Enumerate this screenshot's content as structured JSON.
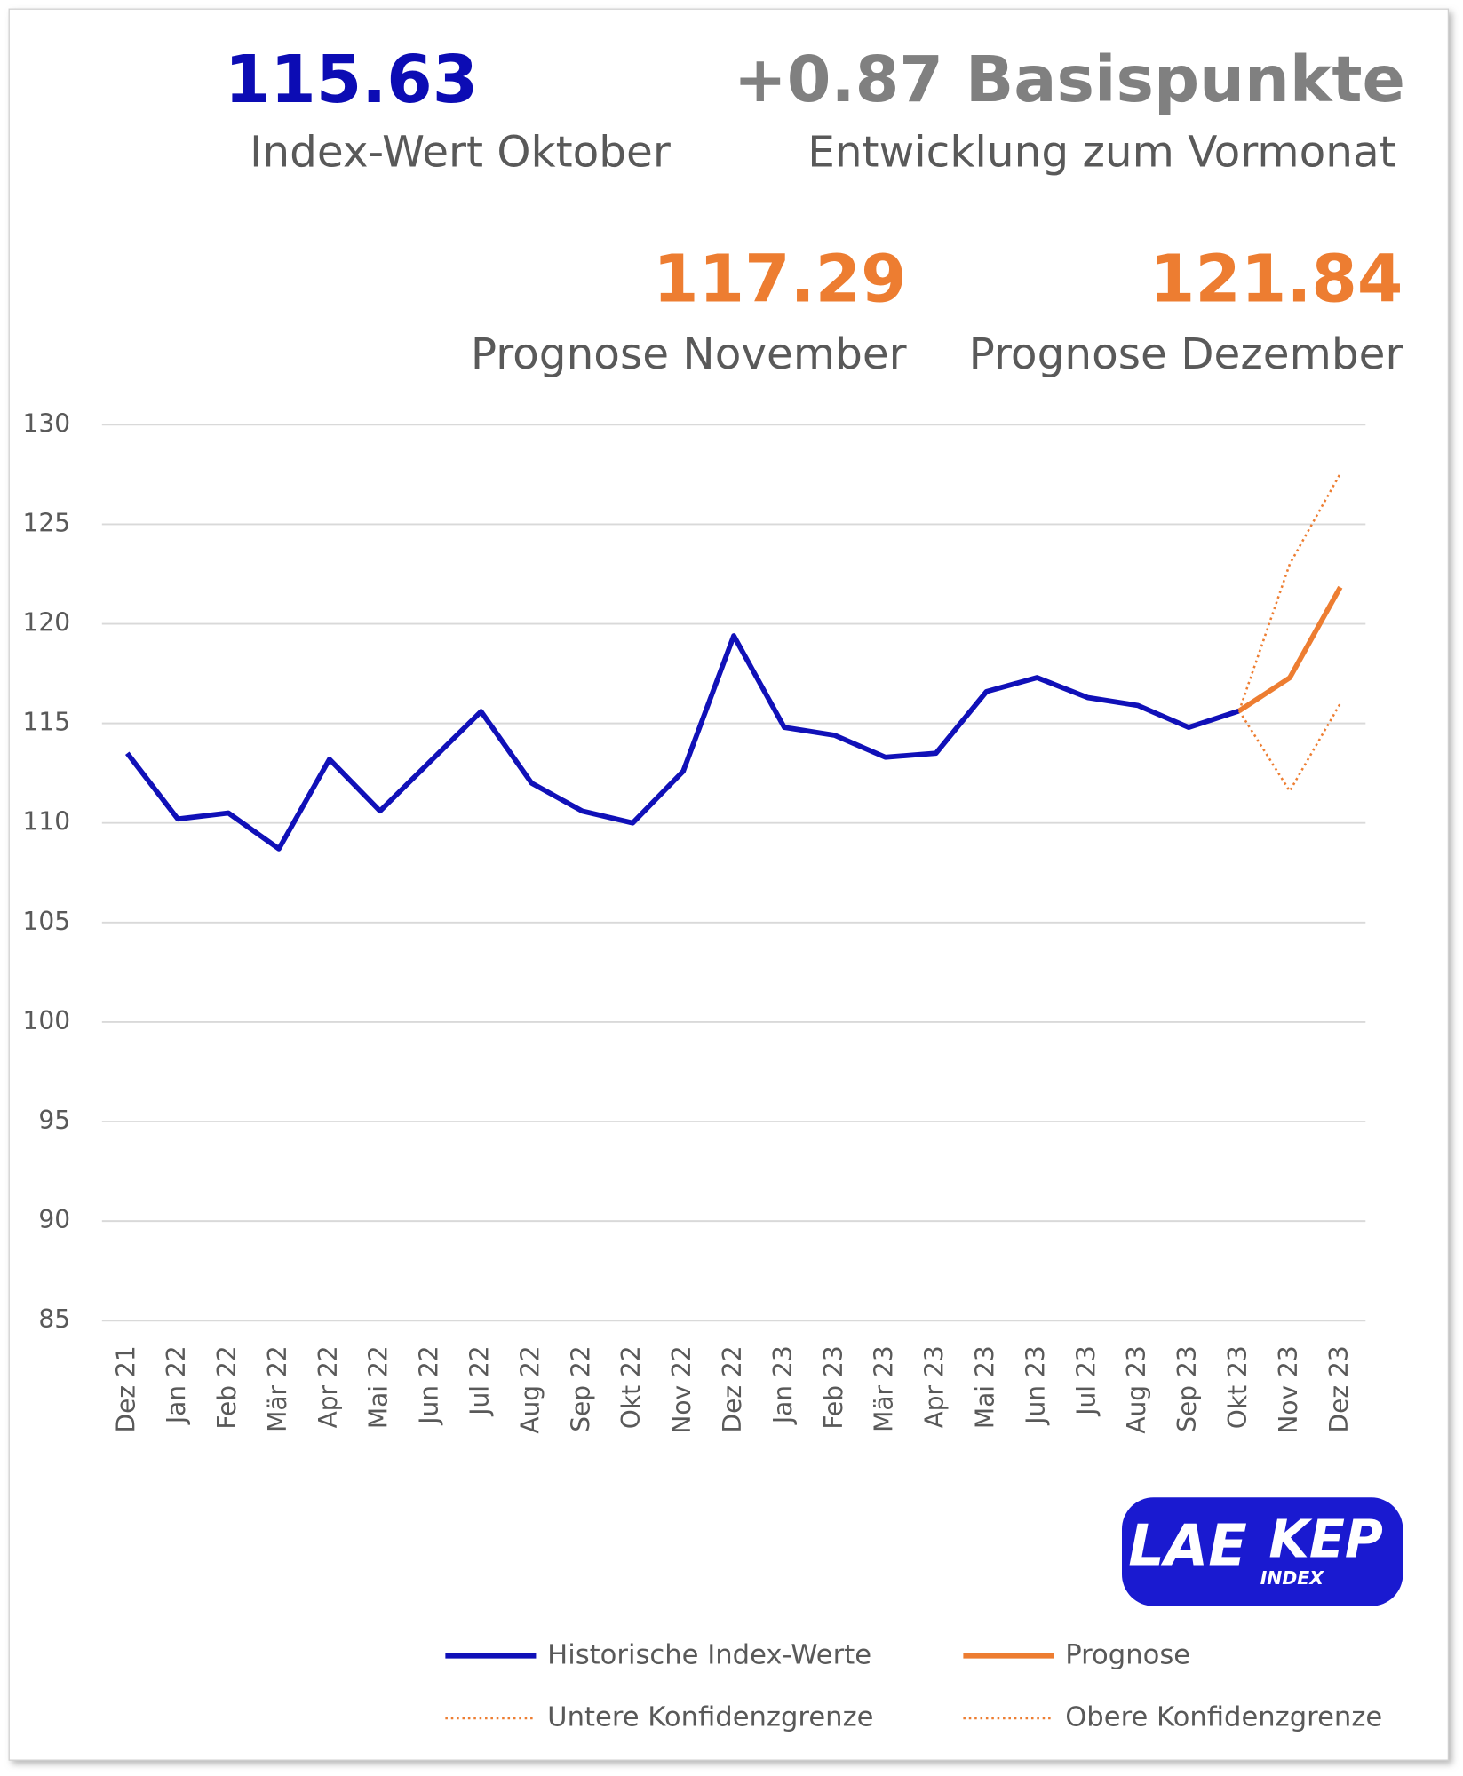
{
  "kpis": [
    {
      "value": "115.63",
      "label": "Index-Wert Oktober"
    },
    {
      "value": "+0.87 Basispunkte",
      "label": "Entwicklung zum Vormonat"
    },
    {
      "value": "117.29",
      "label": "Prognose November"
    },
    {
      "value": "121.84",
      "label": "Prognose Dezember"
    }
  ],
  "logo": {
    "left": "LAE",
    "right": "KEP",
    "sub": "INDEX"
  },
  "chart_data": {
    "type": "line",
    "categories": [
      "Dez 21",
      "Jan 22",
      "Feb 22",
      "Mär 22",
      "Apr 22",
      "Mai 22",
      "Jun 22",
      "Jul 22",
      "Aug 22",
      "Sep 22",
      "Okt 22",
      "Nov 22",
      "Dez 22",
      "Jan 23",
      "Feb 23",
      "Mär 23",
      "Apr 23",
      "Mai 23",
      "Jun 23",
      "Jul 23",
      "Aug 23",
      "Sep 23",
      "Okt 23",
      "Nov 23",
      "Dez 23"
    ],
    "series": [
      {
        "name": "Historische Index-Werte",
        "color": "#1010b8",
        "style": "solid",
        "values": [
          113.5,
          110.2,
          110.5,
          108.7,
          113.2,
          110.6,
          113.1,
          115.6,
          112.0,
          110.6,
          110.0,
          112.6,
          119.4,
          114.8,
          114.4,
          113.3,
          113.5,
          116.6,
          117.3,
          116.3,
          115.9,
          114.8,
          115.63,
          null,
          null
        ]
      },
      {
        "name": "Prognose",
        "color": "#ed7d31",
        "style": "solid",
        "values": [
          null,
          null,
          null,
          null,
          null,
          null,
          null,
          null,
          null,
          null,
          null,
          null,
          null,
          null,
          null,
          null,
          null,
          null,
          null,
          null,
          null,
          null,
          115.63,
          117.29,
          121.84
        ]
      },
      {
        "name": "Untere Konfidenzgrenze",
        "color": "#ed7d31",
        "style": "dotted",
        "values": [
          null,
          null,
          null,
          null,
          null,
          null,
          null,
          null,
          null,
          null,
          null,
          null,
          null,
          null,
          null,
          null,
          null,
          null,
          null,
          null,
          null,
          null,
          115.63,
          111.6,
          116.0
        ]
      },
      {
        "name": "Obere Konfidenzgrenze",
        "color": "#ed7d31",
        "style": "dotted",
        "values": [
          null,
          null,
          null,
          null,
          null,
          null,
          null,
          null,
          null,
          null,
          null,
          null,
          null,
          null,
          null,
          null,
          null,
          null,
          null,
          null,
          null,
          null,
          115.63,
          123.0,
          127.55
        ]
      }
    ],
    "ylim": [
      85,
      130
    ],
    "yticks": [
      85,
      90,
      95,
      100,
      105,
      110,
      115,
      120,
      125,
      130
    ],
    "grid": true
  }
}
